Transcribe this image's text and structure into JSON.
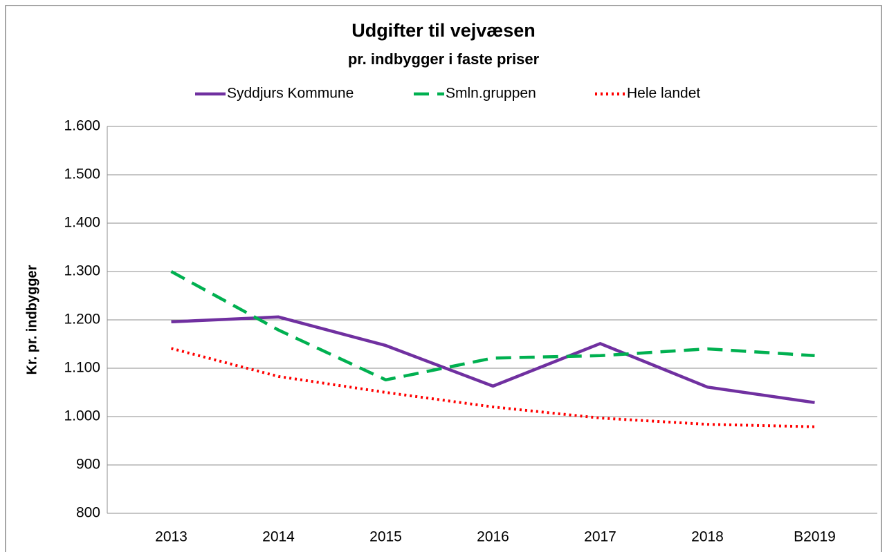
{
  "chart_data": {
    "type": "line",
    "title": "Udgifter til vejvæsen",
    "subtitle": "pr. indbygger i faste priser",
    "y_label": "Kr. pr. indbygger",
    "categories": [
      "2013",
      "2014",
      "2015",
      "2016",
      "2017",
      "2018",
      "B2019"
    ],
    "series": [
      {
        "name": "Syddjurs Kommune",
        "color": "#7030a0",
        "style": "solid",
        "values": [
          1196,
          1206,
          1147,
          1063,
          1151,
          1061,
          1029
        ]
      },
      {
        "name": "Smln.gruppen",
        "color": "#00b050",
        "style": "dashed",
        "values": [
          1300,
          1179,
          1076,
          1121,
          1126,
          1140,
          1126
        ]
      },
      {
        "name": "Hele landet",
        "color": "#ff0000",
        "style": "dotted",
        "values": [
          1141,
          1083,
          1050,
          1020,
          997,
          984,
          979
        ]
      }
    ],
    "ylim": [
      800,
      1600
    ],
    "yticks": [
      800,
      900,
      {
        "value": 1000,
        "label": "1.000"
      },
      {
        "value": 1100,
        "label": "1.100"
      },
      {
        "value": 1200,
        "label": "1.200"
      },
      {
        "value": 1300,
        "label": "1.300"
      },
      {
        "value": 1400,
        "label": "1.400"
      },
      {
        "value": 1500,
        "label": "1.500"
      },
      {
        "value": 1600,
        "label": "1.600"
      }
    ],
    "grid": true,
    "legend": "top"
  }
}
